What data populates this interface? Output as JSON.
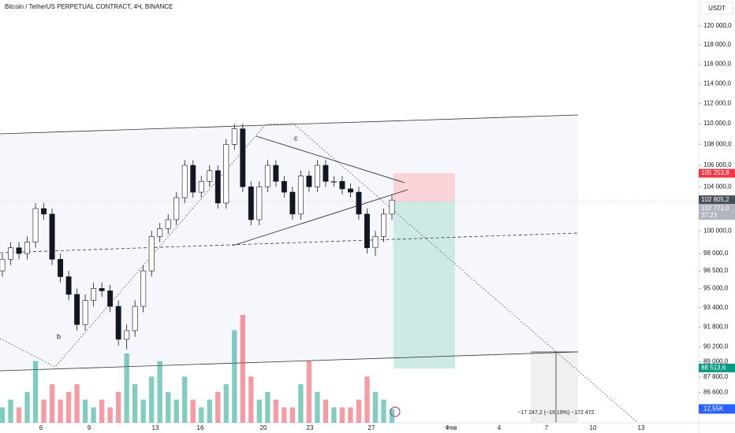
{
  "chart_data": {
    "type": "candlestick",
    "title": "Bitcoin / TetherUS PERPETUAL CONTRACT, 4Ч, BINANCE",
    "currency": "USDT",
    "log_scale": true,
    "ylim": [
      122800,
      84300
    ],
    "yticks": [
      {
        "value": 120000,
        "label": "120 000,0"
      },
      {
        "value": 118000,
        "label": "118 000,0"
      },
      {
        "value": 116000,
        "label": "116 000,0"
      },
      {
        "value": 114000,
        "label": "114 000,0"
      },
      {
        "value": 112000,
        "label": "112 000,0"
      },
      {
        "value": 110000,
        "label": "110 000,0"
      },
      {
        "value": 108000,
        "label": "108 000,0"
      },
      {
        "value": 106000,
        "label": "106 000,0"
      },
      {
        "value": 104000,
        "label": "104 000,0"
      },
      {
        "value": 100000,
        "label": "100 000,0"
      },
      {
        "value": 98000,
        "label": "98 000,0"
      },
      {
        "value": 96500,
        "label": "96 500,0"
      },
      {
        "value": 95000,
        "label": "95 000,0"
      },
      {
        "value": 93400,
        "label": "93 400,0"
      },
      {
        "value": 91800,
        "label": "91 800,0"
      },
      {
        "value": 90200,
        "label": "90 200,0"
      },
      {
        "value": 89000,
        "label": "89 000,0"
      },
      {
        "value": 87800,
        "label": "87 800,0"
      },
      {
        "value": 86600,
        "label": "86 600,0"
      }
    ],
    "price_tags": [
      {
        "value": 105253.8,
        "label": "105 253,8",
        "color": "#f23645"
      },
      {
        "value": 102805.2,
        "label": "102 805,2",
        "color": "#4a4e59"
      },
      {
        "value": 102771.0,
        "label": "102 771,0",
        "color": "#b2b5be",
        "timer": "37:23"
      },
      {
        "value": 88513.6,
        "label": "88 513,6",
        "color": "#089981"
      }
    ],
    "volume_tag": {
      "value": 12.55,
      "label": "12,55K",
      "color": "#2962ff"
    },
    "x_labels": [
      "6",
      "9",
      "13",
      "16",
      "20",
      "23",
      "27",
      "Фев",
      "4",
      "7",
      "10",
      "13"
    ],
    "annotations": [
      "b",
      "c",
      "−17 247,2 (−19,19%) −172 472"
    ],
    "up_color": "#089981",
    "down_color": "#f23645",
    "vlim": [
      0,
      384
    ],
    "open": [
      96500,
      97500,
      98500,
      98000,
      99000,
      102000,
      101500,
      97500,
      96000,
      94500,
      92000,
      94000,
      95000,
      94800,
      93500,
      90800,
      91500,
      93500,
      96500,
      99500,
      100200,
      101000,
      103000,
      106000,
      103500,
      104500,
      105500,
      102500,
      108000,
      109500,
      104000,
      101000,
      104000,
      106000,
      104500,
      103500,
      101500,
      105000,
      104000,
      106000,
      104500,
      104500,
      103800,
      103500,
      101500,
      98500,
      99500,
      101500
    ],
    "high": [
      98000,
      99000,
      99000,
      99500,
      102500,
      102500,
      102000,
      98000,
      96500,
      95000,
      94500,
      95500,
      95500,
      95300,
      94000,
      92000,
      94000,
      97000,
      100000,
      100700,
      101500,
      103500,
      106500,
      106500,
      105000,
      106000,
      106000,
      108500,
      110000,
      110000,
      104500,
      104500,
      106500,
      106500,
      105000,
      104000,
      105500,
      105500,
      106500,
      106500,
      105000,
      105000,
      104300,
      104000,
      102000,
      100000,
      102000,
      103300
    ],
    "low": [
      96000,
      97000,
      97500,
      97500,
      98500,
      101000,
      97000,
      95500,
      94000,
      91500,
      91500,
      93500,
      94300,
      93000,
      90300,
      90000,
      91000,
      93000,
      96000,
      99000,
      99700,
      100500,
      102500,
      103000,
      103000,
      104000,
      102000,
      102000,
      107500,
      103500,
      100500,
      100500,
      103500,
      104000,
      103000,
      101000,
      101000,
      103500,
      103500,
      104000,
      104000,
      103300,
      103000,
      101000,
      98000,
      97800,
      99000,
      101000
    ],
    "close": [
      97500,
      98500,
      98000,
      99000,
      102000,
      101500,
      97500,
      96000,
      94500,
      92000,
      94000,
      95000,
      94800,
      93500,
      90800,
      91500,
      93500,
      96500,
      99500,
      100200,
      101000,
      103000,
      106000,
      103500,
      104500,
      105500,
      102500,
      108000,
      109500,
      104000,
      101000,
      104000,
      106000,
      104500,
      103500,
      101500,
      105000,
      104000,
      106000,
      104500,
      104500,
      103800,
      103500,
      101500,
      98500,
      99500,
      101500,
      102771
    ],
    "volume": [
      14,
      21,
      14,
      28,
      56,
      21,
      35,
      21,
      28,
      35,
      21,
      14,
      21,
      14,
      28,
      63,
      35,
      21,
      42,
      56,
      28,
      21,
      42,
      21,
      14,
      21,
      28,
      35,
      84,
      98,
      42,
      21,
      28,
      21,
      14,
      14,
      35,
      56,
      28,
      21,
      14,
      14,
      14,
      21,
      42,
      28,
      21,
      12.55
    ]
  }
}
